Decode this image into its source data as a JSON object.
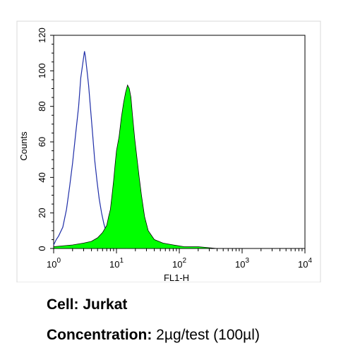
{
  "chart_data": {
    "type": "area",
    "xlabel": "FL1-H",
    "ylabel": "Counts",
    "xscale": "log",
    "xlim": [
      1,
      10000
    ],
    "ylim": [
      0,
      120
    ],
    "yticks": [
      "0",
      "20",
      "40",
      "60",
      "80",
      "100",
      "120"
    ],
    "xticks": [
      {
        "base": "10",
        "exp": "0"
      },
      {
        "base": "10",
        "exp": "1"
      },
      {
        "base": "10",
        "exp": "2"
      },
      {
        "base": "10",
        "exp": "3"
      },
      {
        "base": "10",
        "exp": "4"
      }
    ],
    "grid": false,
    "legend": "none",
    "series": [
      {
        "style": "outline",
        "color": "#1f2ea8",
        "x": [
          1.0,
          1.1,
          1.2,
          1.4,
          1.6,
          1.8,
          2.0,
          2.2,
          2.5,
          2.7,
          2.9,
          3.1,
          3.2,
          3.4,
          3.6,
          3.9,
          4.2,
          4.5,
          4.9,
          5.3,
          5.8,
          6.3,
          6.9,
          7.5,
          8.3,
          9.0,
          10.0,
          12.0,
          15.0
        ],
        "y": [
          2,
          5,
          7,
          12,
          22,
          35,
          48,
          62,
          80,
          96,
          104,
          111,
          108,
          100,
          92,
          77,
          63,
          50,
          38,
          28,
          20,
          14,
          9,
          6,
          4,
          3,
          2,
          1,
          0
        ]
      },
      {
        "style": "filled",
        "color": "#00ff00",
        "x": [
          1.0,
          2.0,
          3.0,
          4.0,
          5.0,
          6.0,
          7.0,
          7.5,
          8.0,
          8.5,
          9.0,
          9.5,
          10.0,
          11.0,
          12.0,
          13.0,
          14.0,
          15.0,
          16.0,
          17.0,
          18.0,
          19.5,
          21.0,
          23.0,
          25.0,
          28.0,
          32.0,
          40.0,
          55.0,
          80.0,
          120.0,
          200.0,
          400.0
        ],
        "y": [
          1,
          2,
          3,
          4,
          6,
          9,
          13,
          18,
          22,
          30,
          38,
          47,
          55,
          63,
          74,
          82,
          88,
          92,
          90,
          85,
          75,
          62,
          52,
          40,
          30,
          18,
          10,
          5,
          3,
          2,
          1,
          1,
          0
        ]
      }
    ]
  },
  "caption": {
    "cell_label": "Cell:",
    "cell_value": "Jurkat",
    "conc_label": "Concentration:",
    "conc_value": "2µg/test (100µl)"
  }
}
